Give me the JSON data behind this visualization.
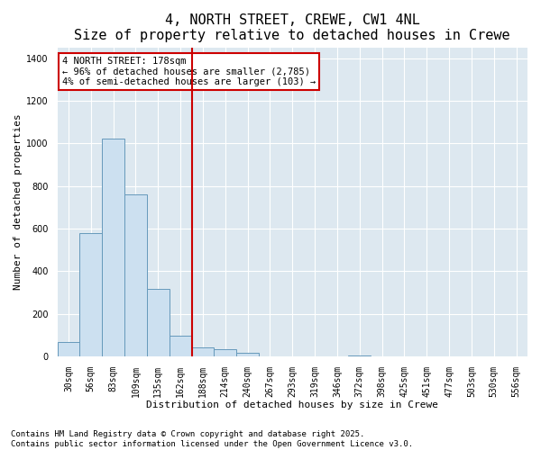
{
  "title": "4, NORTH STREET, CREWE, CW1 4NL",
  "subtitle": "Size of property relative to detached houses in Crewe",
  "xlabel": "Distribution of detached houses by size in Crewe",
  "ylabel": "Number of detached properties",
  "categories": [
    "30sqm",
    "56sqm",
    "83sqm",
    "109sqm",
    "135sqm",
    "162sqm",
    "188sqm",
    "214sqm",
    "240sqm",
    "267sqm",
    "293sqm",
    "319sqm",
    "346sqm",
    "372sqm",
    "398sqm",
    "425sqm",
    "451sqm",
    "477sqm",
    "503sqm",
    "530sqm",
    "556sqm"
  ],
  "values": [
    65,
    580,
    1020,
    760,
    315,
    95,
    40,
    35,
    15,
    0,
    0,
    0,
    0,
    5,
    0,
    0,
    0,
    0,
    0,
    0,
    0
  ],
  "bar_color": "#cce0f0",
  "bar_edge_color": "#6699bb",
  "property_line_color": "#cc0000",
  "annotation_text": "4 NORTH STREET: 178sqm\n← 96% of detached houses are smaller (2,785)\n4% of semi-detached houses are larger (103) →",
  "annotation_box_color": "#cc0000",
  "ylim": [
    0,
    1450
  ],
  "yticks": [
    0,
    200,
    400,
    600,
    800,
    1000,
    1200,
    1400
  ],
  "footer_line1": "Contains HM Land Registry data © Crown copyright and database right 2025.",
  "footer_line2": "Contains public sector information licensed under the Open Government Licence v3.0.",
  "bg_color": "#ffffff",
  "plot_bg_color": "#dde8f0",
  "title_fontsize": 11,
  "axis_label_fontsize": 8,
  "tick_fontsize": 7,
  "footer_fontsize": 6.5,
  "annotation_fontsize": 7.5
}
